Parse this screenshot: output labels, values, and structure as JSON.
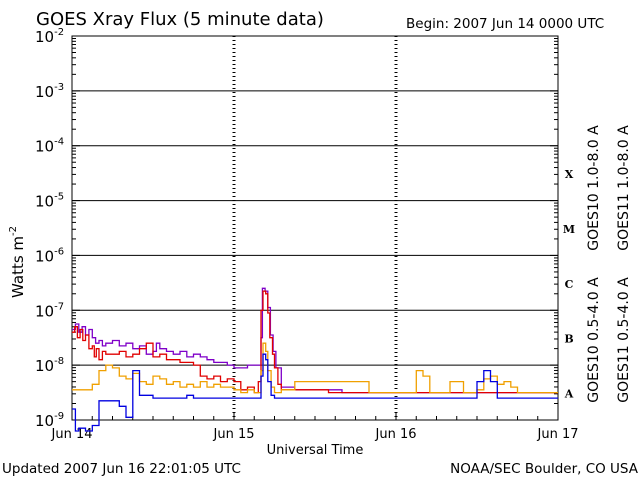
{
  "chart_data": {
    "type": "line",
    "title": "GOES Xray Flux (5 minute data)",
    "begin_label": "Begin:  2007 Jun 14 0000 UTC",
    "xlabel": "Universal Time",
    "ylabel": "Watts m",
    "ylabel_exp": "-2",
    "y_scale": "log",
    "ylim": [
      -9,
      -2
    ],
    "xlim": [
      0,
      72
    ],
    "x_unit": "hours since 2007 Jun 14 0000 UTC",
    "x_ticks": [
      {
        "x": 0,
        "label": "Jun 14"
      },
      {
        "x": 24,
        "label": "Jun 15"
      },
      {
        "x": 48,
        "label": "Jun 16"
      },
      {
        "x": 72,
        "label": "Jun 17"
      }
    ],
    "y_ticks": [
      {
        "exp": -2,
        "base": "10",
        "sup": "-2"
      },
      {
        "exp": -3,
        "base": "10",
        "sup": "-3"
      },
      {
        "exp": -4,
        "base": "10",
        "sup": "-4"
      },
      {
        "exp": -5,
        "base": "10",
        "sup": "-5"
      },
      {
        "exp": -6,
        "base": "10",
        "sup": "-6"
      },
      {
        "exp": -7,
        "base": "10",
        "sup": "-7"
      },
      {
        "exp": -8,
        "base": "10",
        "sup": "-8"
      },
      {
        "exp": -9,
        "base": "10",
        "sup": "-9"
      }
    ],
    "flare_classes": [
      {
        "label": "X",
        "exp": -4
      },
      {
        "label": "M",
        "exp": -5
      },
      {
        "label": "C",
        "exp": -6
      },
      {
        "label": "B",
        "exp": -7
      },
      {
        "label": "A",
        "exp": -8
      }
    ],
    "gridlines_exp": [
      -3,
      -4,
      -5,
      -6,
      -7,
      -8
    ],
    "grid": true,
    "series": [
      {
        "name": "GOES10 1.0-8.0 A",
        "color": "#7f00c8",
        "points": [
          [
            0,
            -7.35
          ],
          [
            0.5,
            -7.25
          ],
          [
            1,
            -7.4
          ],
          [
            1.5,
            -7.3
          ],
          [
            2,
            -7.45
          ],
          [
            2.5,
            -7.35
          ],
          [
            3,
            -7.5
          ],
          [
            3.5,
            -7.6
          ],
          [
            4,
            -7.55
          ],
          [
            4.5,
            -7.65
          ],
          [
            5,
            -7.6
          ],
          [
            6,
            -7.55
          ],
          [
            7,
            -7.65
          ],
          [
            8,
            -7.6
          ],
          [
            9,
            -7.7
          ],
          [
            10,
            -7.65
          ],
          [
            11,
            -7.8
          ],
          [
            12,
            -7.75
          ],
          [
            12.5,
            -7.6
          ],
          [
            13,
            -7.7
          ],
          [
            14,
            -7.75
          ],
          [
            15,
            -7.8
          ],
          [
            16,
            -7.75
          ],
          [
            17,
            -7.85
          ],
          [
            18,
            -7.8
          ],
          [
            19,
            -7.85
          ],
          [
            20,
            -7.9
          ],
          [
            21,
            -7.95
          ],
          [
            22,
            -7.95
          ],
          [
            23,
            -8.0
          ],
          [
            24,
            -8.05
          ],
          [
            25,
            -8.05
          ],
          [
            26,
            -8.0
          ],
          [
            27,
            -8.0
          ],
          [
            28,
            -7.5
          ],
          [
            28.2,
            -6.6
          ],
          [
            28.6,
            -6.65
          ],
          [
            29,
            -6.95
          ],
          [
            29.4,
            -7.45
          ],
          [
            29.8,
            -7.75
          ],
          [
            30.2,
            -8.05
          ],
          [
            31,
            -8.4
          ],
          [
            33,
            -8.45
          ],
          [
            36,
            -8.45
          ],
          [
            40,
            -8.5
          ],
          [
            44,
            -8.5
          ],
          [
            48,
            -8.5
          ],
          [
            52,
            -8.5
          ],
          [
            56,
            -8.5
          ],
          [
            60,
            -8.5
          ],
          [
            64,
            -8.5
          ],
          [
            68,
            -8.5
          ],
          [
            72,
            -8.5
          ]
        ]
      },
      {
        "name": "GOES11 1.0-8.0 A",
        "color": "#e00000",
        "points": [
          [
            0,
            -7.4
          ],
          [
            0.4,
            -7.3
          ],
          [
            0.8,
            -7.5
          ],
          [
            1.2,
            -7.35
          ],
          [
            1.6,
            -7.55
          ],
          [
            2,
            -7.45
          ],
          [
            2.5,
            -7.7
          ],
          [
            3,
            -7.65
          ],
          [
            3.3,
            -7.85
          ],
          [
            3.6,
            -7.7
          ],
          [
            4,
            -7.9
          ],
          [
            4.5,
            -7.75
          ],
          [
            5,
            -7.8
          ],
          [
            6,
            -7.8
          ],
          [
            7,
            -7.75
          ],
          [
            8,
            -7.85
          ],
          [
            9,
            -7.8
          ],
          [
            10,
            -7.7
          ],
          [
            11,
            -7.6
          ],
          [
            12,
            -7.85
          ],
          [
            13,
            -7.8
          ],
          [
            14,
            -7.9
          ],
          [
            15,
            -7.9
          ],
          [
            16,
            -7.95
          ],
          [
            17,
            -7.95
          ],
          [
            18,
            -8.0
          ],
          [
            19,
            -8.2
          ],
          [
            20,
            -8.25
          ],
          [
            21,
            -8.2
          ],
          [
            22,
            -8.3
          ],
          [
            23,
            -8.25
          ],
          [
            24,
            -8.3
          ],
          [
            25,
            -8.45
          ],
          [
            26,
            -8.4
          ],
          [
            27,
            -8.5
          ],
          [
            27.6,
            -8.3
          ],
          [
            28,
            -7.0
          ],
          [
            28.3,
            -6.65
          ],
          [
            28.7,
            -6.7
          ],
          [
            29,
            -7.05
          ],
          [
            29.3,
            -7.5
          ],
          [
            29.7,
            -7.8
          ],
          [
            30,
            -8.05
          ],
          [
            30.5,
            -8.35
          ],
          [
            31,
            -8.45
          ],
          [
            34,
            -8.45
          ],
          [
            38,
            -8.5
          ],
          [
            44,
            -8.5
          ],
          [
            48,
            -8.5
          ],
          [
            52,
            -8.5
          ],
          [
            56,
            -8.5
          ],
          [
            60,
            -8.5
          ],
          [
            64,
            -8.5
          ],
          [
            68,
            -8.5
          ],
          [
            72,
            -8.5
          ]
        ]
      },
      {
        "name": "GOES10 0.5-4.0 A",
        "color": "#f0a000",
        "points": [
          [
            0,
            -8.45
          ],
          [
            2,
            -8.45
          ],
          [
            3,
            -8.35
          ],
          [
            4,
            -8.1
          ],
          [
            5,
            -8.0
          ],
          [
            6,
            -8.05
          ],
          [
            7,
            -8.2
          ],
          [
            8,
            -8.25
          ],
          [
            9,
            -8.15
          ],
          [
            10,
            -8.3
          ],
          [
            11,
            -8.35
          ],
          [
            12,
            -8.2
          ],
          [
            13,
            -8.25
          ],
          [
            14,
            -8.35
          ],
          [
            15,
            -8.3
          ],
          [
            16,
            -8.4
          ],
          [
            17,
            -8.35
          ],
          [
            18,
            -8.4
          ],
          [
            19,
            -8.3
          ],
          [
            20,
            -8.4
          ],
          [
            21,
            -8.35
          ],
          [
            22,
            -8.4
          ],
          [
            23,
            -8.4
          ],
          [
            24,
            -8.45
          ],
          [
            25,
            -8.5
          ],
          [
            26,
            -8.45
          ],
          [
            27,
            -8.5
          ],
          [
            28,
            -8.1
          ],
          [
            28.3,
            -7.6
          ],
          [
            28.7,
            -7.75
          ],
          [
            29,
            -8.1
          ],
          [
            29.5,
            -8.4
          ],
          [
            30,
            -8.5
          ],
          [
            31,
            -8.45
          ],
          [
            33,
            -8.3
          ],
          [
            36,
            -8.3
          ],
          [
            40,
            -8.3
          ],
          [
            44,
            -8.5
          ],
          [
            47,
            -8.5
          ],
          [
            48,
            -8.5
          ],
          [
            50,
            -8.5
          ],
          [
            51,
            -8.1
          ],
          [
            52,
            -8.2
          ],
          [
            53,
            -8.5
          ],
          [
            55,
            -8.5
          ],
          [
            56,
            -8.3
          ],
          [
            57,
            -8.3
          ],
          [
            58,
            -8.5
          ],
          [
            60,
            -8.45
          ],
          [
            61,
            -8.25
          ],
          [
            62,
            -8.2
          ],
          [
            63,
            -8.35
          ],
          [
            64,
            -8.3
          ],
          [
            65,
            -8.4
          ],
          [
            66,
            -8.5
          ],
          [
            68,
            -8.5
          ],
          [
            70,
            -8.5
          ],
          [
            72,
            -8.5
          ]
        ]
      },
      {
        "name": "GOES11 0.5-4.0 A",
        "color": "#0000e0",
        "points": [
          [
            0,
            -8.8
          ],
          [
            0.5,
            -9.2
          ],
          [
            1,
            -9.15
          ],
          [
            2,
            -9.2
          ],
          [
            3,
            -9.1
          ],
          [
            4,
            -8.65
          ],
          [
            5,
            -8.65
          ],
          [
            6,
            -8.65
          ],
          [
            7,
            -8.75
          ],
          [
            8,
            -8.95
          ],
          [
            9,
            -8.1
          ],
          [
            10,
            -8.55
          ],
          [
            11,
            -8.55
          ],
          [
            12,
            -8.6
          ],
          [
            13,
            -8.6
          ],
          [
            14,
            -8.6
          ],
          [
            15,
            -8.6
          ],
          [
            16,
            -8.6
          ],
          [
            17,
            -8.55
          ],
          [
            18,
            -8.6
          ],
          [
            19,
            -8.6
          ],
          [
            20,
            -8.6
          ],
          [
            21,
            -8.6
          ],
          [
            22,
            -8.6
          ],
          [
            23,
            -8.6
          ],
          [
            24,
            -8.6
          ],
          [
            25,
            -8.6
          ],
          [
            26,
            -8.6
          ],
          [
            27,
            -8.6
          ],
          [
            28,
            -8.2
          ],
          [
            28.3,
            -7.8
          ],
          [
            28.7,
            -7.9
          ],
          [
            29,
            -8.3
          ],
          [
            29.5,
            -8.55
          ],
          [
            30,
            -8.6
          ],
          [
            31,
            -8.6
          ],
          [
            33,
            -8.6
          ],
          [
            36,
            -8.6
          ],
          [
            40,
            -8.6
          ],
          [
            44,
            -8.6
          ],
          [
            48,
            -8.6
          ],
          [
            52,
            -8.6
          ],
          [
            56,
            -8.6
          ],
          [
            59,
            -8.6
          ],
          [
            60,
            -8.3
          ],
          [
            61,
            -8.1
          ],
          [
            62,
            -8.3
          ],
          [
            63,
            -8.6
          ],
          [
            64,
            -8.6
          ],
          [
            66,
            -8.6
          ],
          [
            68,
            -8.6
          ],
          [
            70,
            -8.6
          ],
          [
            72,
            -8.6
          ]
        ]
      }
    ]
  },
  "footer": {
    "updated": "Updated 2007 Jun 16 22:01:05 UTC",
    "source": "NOAA/SEC Boulder, CO USA"
  }
}
